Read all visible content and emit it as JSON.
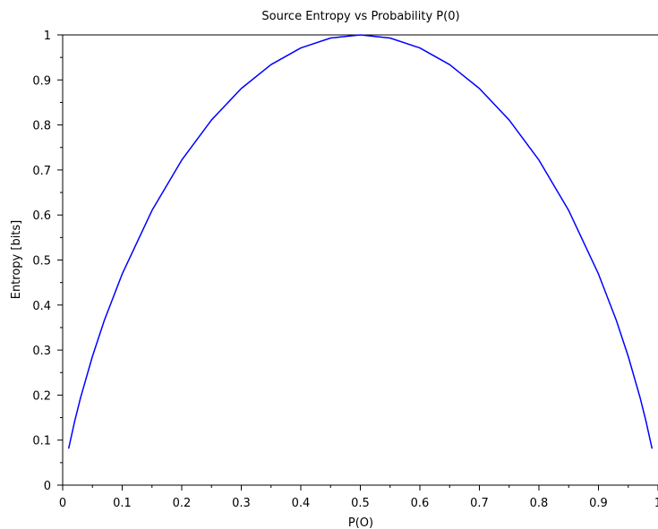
{
  "chart_data": {
    "type": "line",
    "title": "Source Entropy vs Probability P(0)",
    "xlabel": "P(O)",
    "ylabel": "Entropy [bits]",
    "xlim": [
      0,
      1
    ],
    "ylim": [
      0,
      1
    ],
    "x_ticks": [
      "0",
      "0.1",
      "0.2",
      "0.3",
      "0.4",
      "0.5",
      "0.6",
      "0.7",
      "0.8",
      "0.9",
      "1"
    ],
    "y_ticks": [
      "0",
      "0.1",
      "0.2",
      "0.3",
      "0.4",
      "0.5",
      "0.6",
      "0.7",
      "0.8",
      "0.9",
      "1"
    ],
    "grid": false,
    "series": [
      {
        "color": "#0000ff",
        "x": [
          0.01,
          0.02,
          0.03,
          0.05,
          0.07,
          0.1,
          0.15,
          0.2,
          0.25,
          0.3,
          0.35,
          0.4,
          0.45,
          0.5,
          0.55,
          0.6,
          0.65,
          0.7,
          0.75,
          0.8,
          0.85,
          0.9,
          0.93,
          0.95,
          0.97,
          0.98,
          0.99
        ],
        "y": [
          0.081,
          0.141,
          0.194,
          0.286,
          0.366,
          0.469,
          0.61,
          0.722,
          0.811,
          0.881,
          0.934,
          0.971,
          0.993,
          1.0,
          0.993,
          0.971,
          0.934,
          0.881,
          0.811,
          0.722,
          0.61,
          0.469,
          0.366,
          0.286,
          0.194,
          0.141,
          0.081
        ]
      }
    ]
  }
}
